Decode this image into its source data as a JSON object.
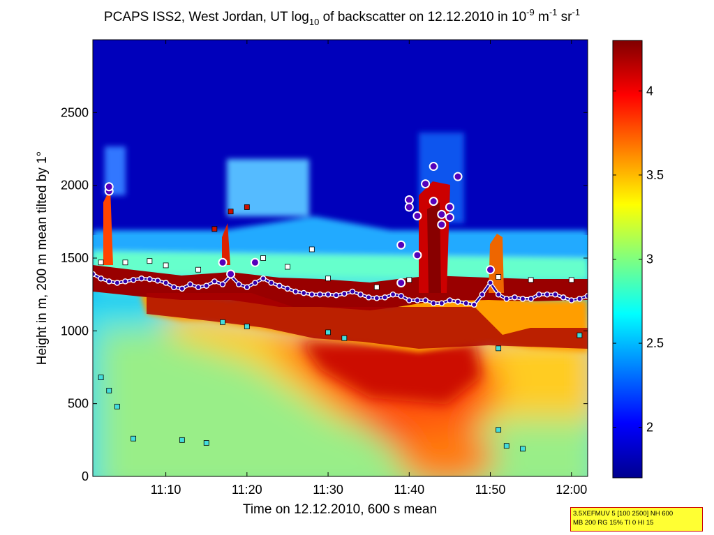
{
  "chart_data": {
    "type": "heatmap",
    "title": {
      "part1": "PCAPS ISS2, West Jordan, UT log",
      "sub1": "10",
      "part2": " of backscatter on 12.12.2010 in 10",
      "sup1": "-9",
      "part3": " m",
      "sup2": "-1",
      "part4": " sr",
      "sup3": "-1"
    },
    "xlabel": "Time on 12.12.2010, 600 s mean",
    "ylabel": "Height in m, 200 m mean tilted by 1°",
    "xlim": [
      "11:01",
      "12:02"
    ],
    "ylim": [
      0,
      3000
    ],
    "x_ticks": [
      "11:10",
      "11:20",
      "11:30",
      "11:40",
      "11:50",
      "12:00"
    ],
    "y_ticks": [
      "0",
      "500",
      "1000",
      "1500",
      "2000",
      "2500"
    ],
    "colorbar": {
      "colormap": "jet",
      "range": [
        1.7,
        4.3
      ],
      "ticks": [
        "2",
        "2.5",
        "3",
        "3.5",
        "4"
      ]
    },
    "mixing_layer_height": [
      [
        "11:01",
        1390
      ],
      [
        "11:02",
        1360
      ],
      [
        "11:03",
        1340
      ],
      [
        "11:04",
        1330
      ],
      [
        "11:05",
        1340
      ],
      [
        "11:06",
        1350
      ],
      [
        "11:07",
        1360
      ],
      [
        "11:08",
        1355
      ],
      [
        "11:09",
        1345
      ],
      [
        "11:10",
        1330
      ],
      [
        "11:11",
        1300
      ],
      [
        "11:12",
        1290
      ],
      [
        "11:13",
        1320
      ],
      [
        "11:14",
        1300
      ],
      [
        "11:15",
        1310
      ],
      [
        "11:16",
        1340
      ],
      [
        "11:17",
        1320
      ],
      [
        "11:18",
        1380
      ],
      [
        "11:19",
        1320
      ],
      [
        "11:20",
        1300
      ],
      [
        "11:21",
        1330
      ],
      [
        "11:22",
        1360
      ],
      [
        "11:23",
        1330
      ],
      [
        "11:24",
        1310
      ],
      [
        "11:25",
        1290
      ],
      [
        "11:26",
        1270
      ],
      [
        "11:27",
        1260
      ],
      [
        "11:28",
        1250
      ],
      [
        "11:29",
        1250
      ],
      [
        "11:30",
        1250
      ],
      [
        "11:31",
        1245
      ],
      [
        "11:32",
        1255
      ],
      [
        "11:33",
        1270
      ],
      [
        "11:34",
        1250
      ],
      [
        "11:35",
        1230
      ],
      [
        "11:36",
        1225
      ],
      [
        "11:37",
        1230
      ],
      [
        "11:38",
        1250
      ],
      [
        "11:39",
        1240
      ],
      [
        "11:40",
        1210
      ],
      [
        "11:41",
        1210
      ],
      [
        "11:42",
        1210
      ],
      [
        "11:43",
        1190
      ],
      [
        "11:44",
        1190
      ],
      [
        "11:45",
        1210
      ],
      [
        "11:46",
        1200
      ],
      [
        "11:47",
        1190
      ],
      [
        "11:48",
        1180
      ],
      [
        "11:49",
        1250
      ],
      [
        "11:50",
        1330
      ],
      [
        "11:51",
        1250
      ],
      [
        "11:52",
        1220
      ],
      [
        "11:53",
        1230
      ],
      [
        "11:54",
        1220
      ],
      [
        "11:55",
        1220
      ],
      [
        "11:56",
        1250
      ],
      [
        "11:57",
        1250
      ],
      [
        "11:58",
        1250
      ],
      [
        "11:59",
        1230
      ],
      [
        "12:00",
        1210
      ],
      [
        "12:01",
        1220
      ],
      [
        "12:02",
        1240
      ]
    ],
    "upper_layer_markers": [
      [
        "11:03",
        1960
      ],
      [
        "11:03",
        1990
      ],
      [
        "11:17",
        1470
      ],
      [
        "11:18",
        1390
      ],
      [
        "11:21",
        1470
      ],
      [
        "11:39",
        1330
      ],
      [
        "11:39",
        1590
      ],
      [
        "11:40",
        1900
      ],
      [
        "11:40",
        1850
      ],
      [
        "11:41",
        1790
      ],
      [
        "11:41",
        1520
      ],
      [
        "11:42",
        2010
      ],
      [
        "11:43",
        1890
      ],
      [
        "11:43",
        2130
      ],
      [
        "11:44",
        1730
      ],
      [
        "11:44",
        1800
      ],
      [
        "11:45",
        1850
      ],
      [
        "11:45",
        1780
      ],
      [
        "11:46",
        2060
      ],
      [
        "11:50",
        1420
      ]
    ],
    "aerosol_layer_markers": [
      [
        "11:02",
        1470
      ],
      [
        "11:05",
        1470
      ],
      [
        "11:08",
        1480
      ],
      [
        "11:10",
        1450
      ],
      [
        "11:14",
        1420
      ],
      [
        "11:16",
        1700
      ],
      [
        "11:18",
        1820
      ],
      [
        "11:20",
        1850
      ],
      [
        "11:22",
        1500
      ],
      [
        "11:25",
        1440
      ],
      [
        "11:28",
        1560
      ],
      [
        "11:30",
        1360
      ],
      [
        "11:36",
        1300
      ],
      [
        "11:40",
        1350
      ],
      [
        "11:51",
        1370
      ],
      [
        "11:55",
        1350
      ],
      [
        "12:00",
        1350
      ],
      [
        "11:02",
        680
      ],
      [
        "11:03",
        590
      ],
      [
        "11:04",
        480
      ],
      [
        "11:06",
        260
      ],
      [
        "11:12",
        250
      ],
      [
        "11:15",
        230
      ],
      [
        "11:17",
        1060
      ],
      [
        "11:20",
        1030
      ],
      [
        "11:30",
        990
      ],
      [
        "11:32",
        950
      ],
      [
        "11:51",
        880
      ],
      [
        "11:51",
        320
      ],
      [
        "11:52",
        210
      ],
      [
        "11:54",
        190
      ],
      [
        "12:01",
        970
      ]
    ],
    "info_box": {
      "line1": "3.5XEFMUV 5 [100 2500] NH 600",
      "line2": "MB 200 RG 15% TI 0 HI 15"
    }
  }
}
